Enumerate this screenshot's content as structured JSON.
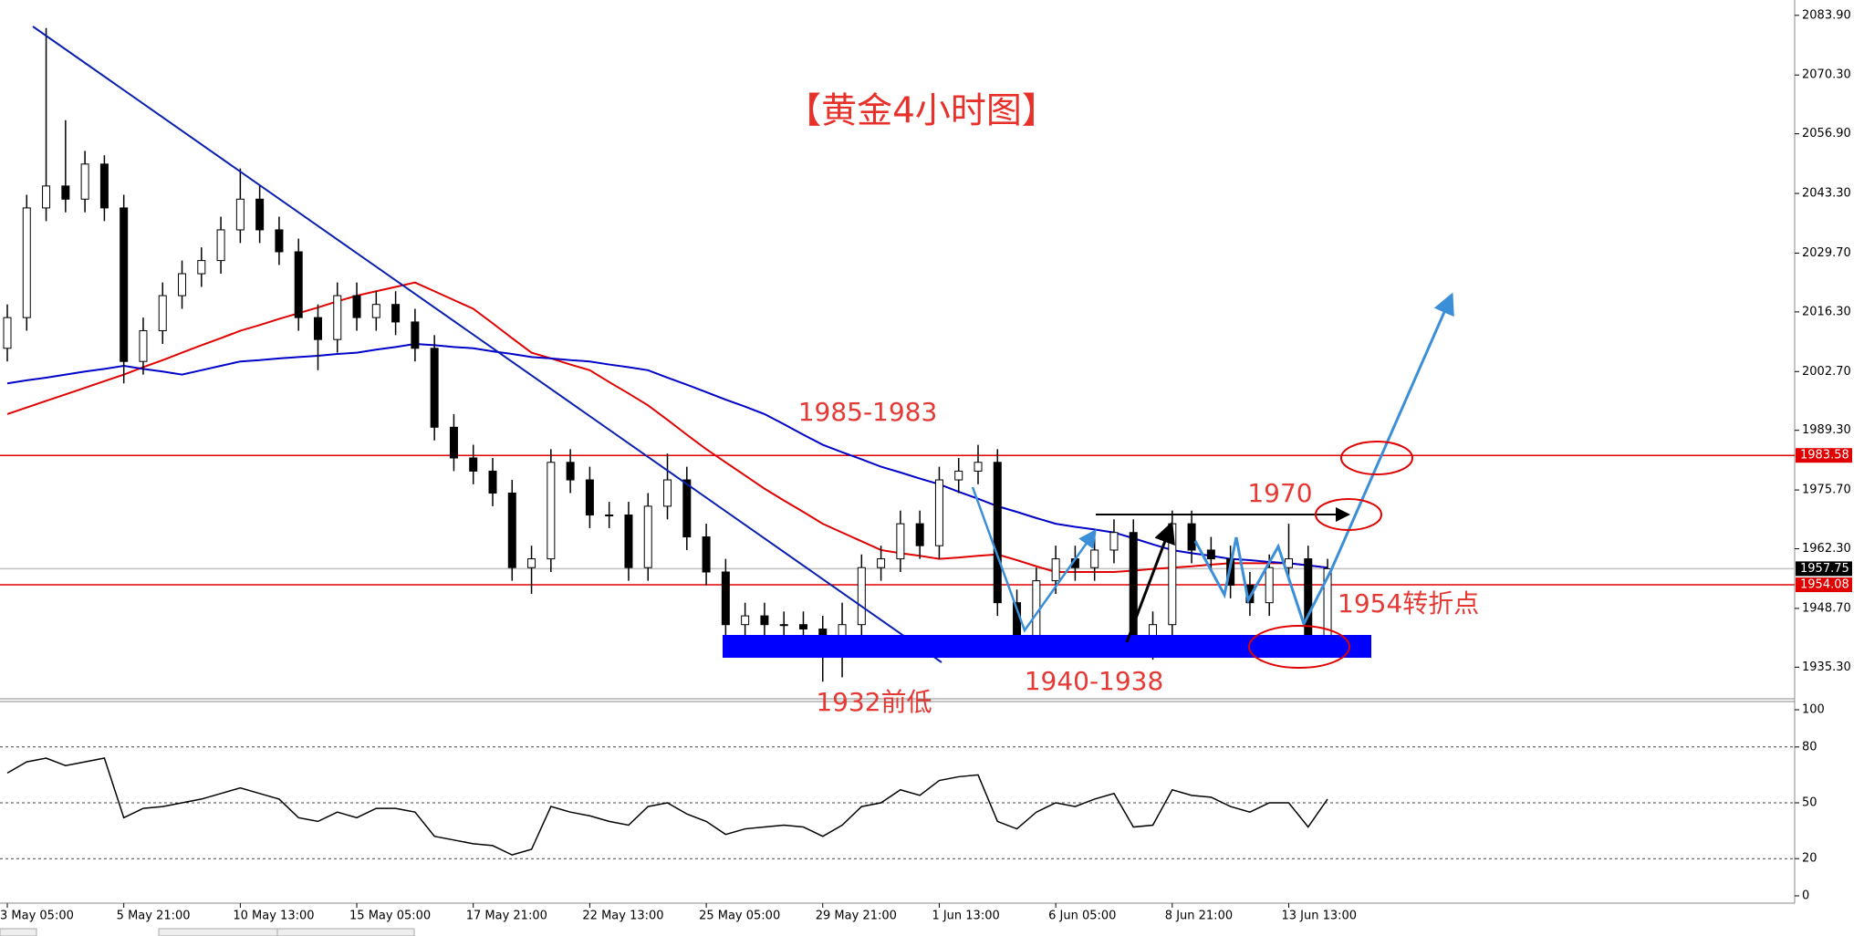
{
  "chart_data": {
    "type": "candlestick",
    "title": "【黄金4小时图】",
    "categories": [
      "3 May 05:00",
      null,
      null,
      null,
      null,
      null,
      "5 May 21:00",
      null,
      null,
      null,
      null,
      null,
      "10 May 13:00",
      null,
      null,
      null,
      null,
      null,
      "15 May 05:00",
      null,
      null,
      null,
      null,
      null,
      "17 May 21:00",
      null,
      null,
      null,
      null,
      null,
      "22 May 13:00",
      null,
      null,
      null,
      null,
      null,
      "25 May 05:00",
      null,
      null,
      null,
      null,
      null,
      "29 May 21:00",
      null,
      null,
      null,
      null,
      null,
      "1 Jun 13:00",
      null,
      null,
      null,
      null,
      null,
      "6 Jun 05:00",
      null,
      null,
      null,
      null,
      null,
      "8 Jun 21:00",
      null,
      null,
      null,
      null,
      null,
      "13 Jun 13:00",
      null,
      null
    ],
    "open": [
      2008,
      2015,
      2040,
      2045,
      2042,
      2050,
      2040,
      2005,
      2012,
      2020,
      2025,
      2028,
      2035,
      2042,
      2035,
      2030,
      2015,
      2010,
      2020,
      2015,
      2018,
      2014,
      2008,
      1990,
      1983,
      1980,
      1975,
      1958,
      1960,
      1982,
      1978,
      1970,
      1970,
      1958,
      1972,
      1978,
      1965,
      1957,
      1945,
      1947,
      1945,
      1945,
      1944,
      1942,
      1945,
      1958,
      1960,
      1968,
      1963,
      1978,
      1980,
      1982,
      1950,
      1942,
      1955,
      1960,
      1958,
      1962,
      1966,
      1940,
      1945,
      1968,
      1962,
      1960,
      1954,
      1950,
      1958,
      1960,
      1942
    ],
    "high": [
      2018,
      2043,
      2081,
      2060,
      2053,
      2052,
      2043,
      2015,
      2023,
      2028,
      2031,
      2038,
      2049,
      2045,
      2038,
      2033,
      2018,
      2023,
      2023,
      2021,
      2021,
      2017,
      2011,
      1993,
      1986,
      1983,
      1978,
      1963,
      1985,
      1985,
      1981,
      1973,
      1973,
      1975,
      1984,
      1981,
      1968,
      1960,
      1950,
      1950,
      1948,
      1948,
      1947,
      1950,
      1961,
      1963,
      1971,
      1971,
      1981,
      1983,
      1986,
      1985,
      1953,
      1958,
      1963,
      1963,
      1965,
      1969,
      1969,
      1948,
      1971,
      1971,
      1965,
      1963,
      1957,
      1961,
      1968,
      1963,
      1960
    ],
    "low": [
      2005,
      2012,
      2037,
      2039,
      2039,
      2037,
      2000,
      2002,
      2009,
      2017,
      2022,
      2025,
      2032,
      2032,
      2027,
      2012,
      2003,
      2007,
      2012,
      2012,
      2011,
      2005,
      1987,
      1980,
      1977,
      1972,
      1955,
      1952,
      1957,
      1975,
      1967,
      1967,
      1955,
      1955,
      1969,
      1962,
      1954,
      1942,
      1942,
      1942,
      1942,
      1941,
      1932,
      1933,
      1942,
      1955,
      1957,
      1960,
      1960,
      1975,
      1977,
      1947,
      1939,
      1939,
      1952,
      1955,
      1955,
      1959,
      1938,
      1937,
      1942,
      1959,
      1957,
      1951,
      1947,
      1947,
      1955,
      1940,
      1940
    ],
    "close": [
      2015,
      2040,
      2045,
      2042,
      2050,
      2040,
      2005,
      2012,
      2020,
      2025,
      2028,
      2035,
      2042,
      2035,
      2030,
      2015,
      2010,
      2020,
      2015,
      2018,
      2014,
      2008,
      1990,
      1983,
      1980,
      1975,
      1958,
      1960,
      1982,
      1978,
      1970,
      1970,
      1958,
      1972,
      1978,
      1965,
      1957,
      1945,
      1947,
      1945,
      1945,
      1944,
      1942,
      1945,
      1958,
      1960,
      1968,
      1963,
      1978,
      1980,
      1982,
      1950,
      1942,
      1955,
      1960,
      1958,
      1962,
      1966,
      1940,
      1945,
      1968,
      1962,
      1960,
      1954,
      1950,
      1958,
      1960,
      1942,
      1957.75
    ],
    "series": [
      {
        "color": "#e00000",
        "values": [
          1993,
          1994.5,
          1996,
          1997.5,
          1999,
          2000.5,
          2002,
          2003.7,
          2005.3,
          2007,
          2008.7,
          2010.3,
          2012,
          2013.3,
          2014.7,
          2016,
          2017.3,
          2018.7,
          2020,
          2021,
          2022,
          2023,
          2021,
          2019,
          2017,
          2013.7,
          2010.3,
          2007,
          2005.7,
          2004.3,
          2003,
          2000.3,
          1997.7,
          1995,
          1991.7,
          1988.3,
          1985,
          1982,
          1979,
          1976,
          1973.3,
          1970.7,
          1968,
          1966,
          1964,
          1962,
          1961.3,
          1960.7,
          1960,
          1960.3,
          1960.7,
          1961,
          1959.7,
          1958.3,
          1957,
          1957,
          1957,
          1957,
          1957.3,
          1957.7,
          1958,
          1958.3,
          1958.7,
          1959,
          1959,
          1959,
          1959,
          1958.5,
          1958
        ]
      },
      {
        "color": "#0000c8",
        "values": [
          2000,
          2000.7,
          2001.3,
          2002,
          2002.7,
          2003.3,
          2004,
          2003.3,
          2002.7,
          2002,
          2003,
          2004,
          2005,
          2005.3,
          2005.7,
          2006,
          2006.3,
          2006.7,
          2007,
          2007.7,
          2008.3,
          2009,
          2008.7,
          2008.3,
          2008,
          2007.3,
          2006.7,
          2006,
          2005.7,
          2005.3,
          2005,
          2004.3,
          2003.7,
          2003,
          2001.3,
          1999.7,
          1998,
          1996.3,
          1994.7,
          1993,
          1990.7,
          1988.3,
          1986,
          1984.3,
          1982.7,
          1981,
          1979.7,
          1978.3,
          1977,
          1975.3,
          1973.7,
          1972,
          1970.7,
          1969.3,
          1968,
          1967.3,
          1966.7,
          1966,
          1964.7,
          1963.3,
          1962,
          1961.3,
          1960.7,
          1960,
          1959.7,
          1959.3,
          1959,
          1958.5,
          1958
        ]
      }
    ],
    "ylim": [
      1928.3,
      2087.4
    ],
    "yticks": [
      {
        "value": 2083.9,
        "label": "2083.90"
      },
      {
        "value": 2070.3,
        "label": "2070.30"
      },
      {
        "value": 2056.9,
        "label": "2056.90"
      },
      {
        "value": 2043.3,
        "label": "2043.30"
      },
      {
        "value": 2029.7,
        "label": "2029.70"
      },
      {
        "value": 2016.3,
        "label": "2016.30"
      },
      {
        "value": 2002.7,
        "label": "2002.70"
      },
      {
        "value": 1989.3,
        "label": "1989.30"
      },
      {
        "value": 1975.7,
        "label": "1975.70"
      },
      {
        "value": 1962.3,
        "label": "1962.30"
      },
      {
        "value": 1948.7,
        "label": "1948.70"
      },
      {
        "value": 1935.3,
        "label": "1935.30"
      }
    ],
    "price_lines": [
      1983.58,
      1957.75,
      1954.08
    ],
    "price_line_colors": [
      "#e00000",
      "#000000",
      "#e00000"
    ],
    "annotations": [
      "1985-1983",
      "1970",
      "1954转折点",
      "1940-1938",
      "1932前低"
    ],
    "indicator": {
      "type": "line",
      "color": "#000000",
      "ylim": [
        0,
        100
      ],
      "yticks": [
        100,
        80,
        50,
        20,
        0
      ],
      "values": [
        66,
        72,
        74,
        70,
        72,
        74,
        42,
        47,
        48,
        50,
        52,
        55,
        58,
        55,
        52,
        42,
        40,
        45,
        42,
        47,
        47,
        45,
        32,
        30,
        28,
        27,
        22,
        25,
        48,
        45,
        43,
        40,
        38,
        48,
        50,
        44,
        40,
        33,
        36,
        37,
        38,
        37,
        32,
        38,
        48,
        50,
        57,
        54,
        62,
        64,
        65,
        40,
        36,
        45,
        50,
        48,
        52,
        55,
        37,
        38,
        57,
        54,
        53,
        48,
        45,
        50,
        50,
        37,
        52
      ]
    }
  }
}
